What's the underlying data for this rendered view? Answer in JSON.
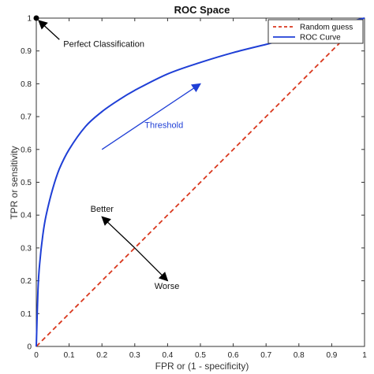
{
  "chart_data": {
    "type": "line",
    "title": "ROC Space",
    "xlabel": "FPR or (1 - specificity)",
    "ylabel": "TPR or sensitivity",
    "xlim": [
      0,
      1
    ],
    "ylim": [
      0,
      1
    ],
    "xticks": [
      "0",
      "0.1",
      "0.2",
      "0.3",
      "0.4",
      "0.5",
      "0.6",
      "0.7",
      "0.8",
      "0.9",
      "1"
    ],
    "yticks": [
      "0",
      "0.1",
      "0.2",
      "0.3",
      "0.4",
      "0.5",
      "0.6",
      "0.7",
      "0.8",
      "0.9",
      "1"
    ],
    "grid": false,
    "legend_position": "top-right",
    "series": [
      {
        "name": "Random guess",
        "style": "dashed",
        "color": "#d9381e",
        "x": [
          0,
          1
        ],
        "y": [
          0,
          1
        ]
      },
      {
        "name": "ROC Curve",
        "style": "solid",
        "color": "#1f3fd6",
        "x": [
          0,
          0.005,
          0.01,
          0.02,
          0.03,
          0.05,
          0.07,
          0.1,
          0.15,
          0.2,
          0.25,
          0.3,
          0.4,
          0.5,
          0.6,
          0.7,
          0.8,
          0.9,
          1.0
        ],
        "y": [
          0,
          0.17,
          0.25,
          0.34,
          0.4,
          0.48,
          0.54,
          0.6,
          0.67,
          0.715,
          0.75,
          0.78,
          0.83,
          0.865,
          0.895,
          0.92,
          0.945,
          0.975,
          1.0
        ]
      }
    ],
    "annotations": [
      {
        "text": "Perfect Classification",
        "x": 0.08,
        "y": 0.925,
        "arrow_to": [
          0.0,
          1.0
        ]
      },
      {
        "text": "Threshold",
        "x": 0.33,
        "y": 0.665,
        "arrow_from": [
          0.2,
          0.6
        ],
        "arrow_to": [
          0.5,
          0.8
        ],
        "color": "#1f3fd6"
      },
      {
        "text": "Better",
        "x": 0.165,
        "y": 0.41,
        "arrow_from": [
          0.3,
          0.3
        ],
        "arrow_to": [
          0.2,
          0.395
        ]
      },
      {
        "text": "Worse",
        "x": 0.36,
        "y": 0.175,
        "arrow_from": [
          0.3,
          0.3
        ],
        "arrow_to": [
          0.4,
          0.2
        ]
      }
    ],
    "marker": {
      "x": 0,
      "y": 1,
      "color": "#000000"
    }
  }
}
